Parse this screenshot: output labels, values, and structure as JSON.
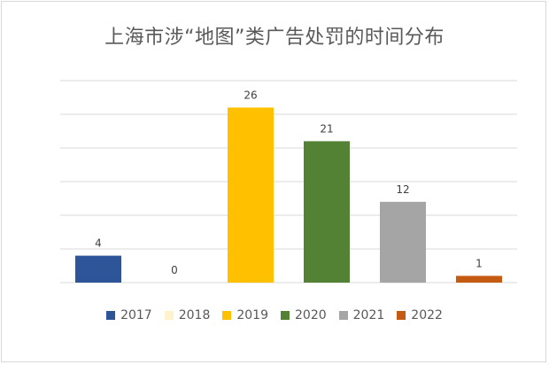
{
  "chart_data": {
    "type": "bar",
    "title": "上海市涉“地图”类广告处罚的时间分布",
    "categories": [
      "2017",
      "2018",
      "2019",
      "2020",
      "2021",
      "2022"
    ],
    "values": [
      4,
      0,
      26,
      21,
      12,
      1
    ],
    "data_labels": [
      "4",
      "0",
      "26",
      "21",
      "12",
      "1"
    ],
    "colors": [
      "#2e5597",
      "#fff2cc",
      "#ffc000",
      "#548235",
      "#a5a5a5",
      "#c55a11"
    ],
    "ylim": [
      0,
      30
    ],
    "grid": true,
    "legend": "bottom",
    "xlabel": "",
    "ylabel": ""
  }
}
